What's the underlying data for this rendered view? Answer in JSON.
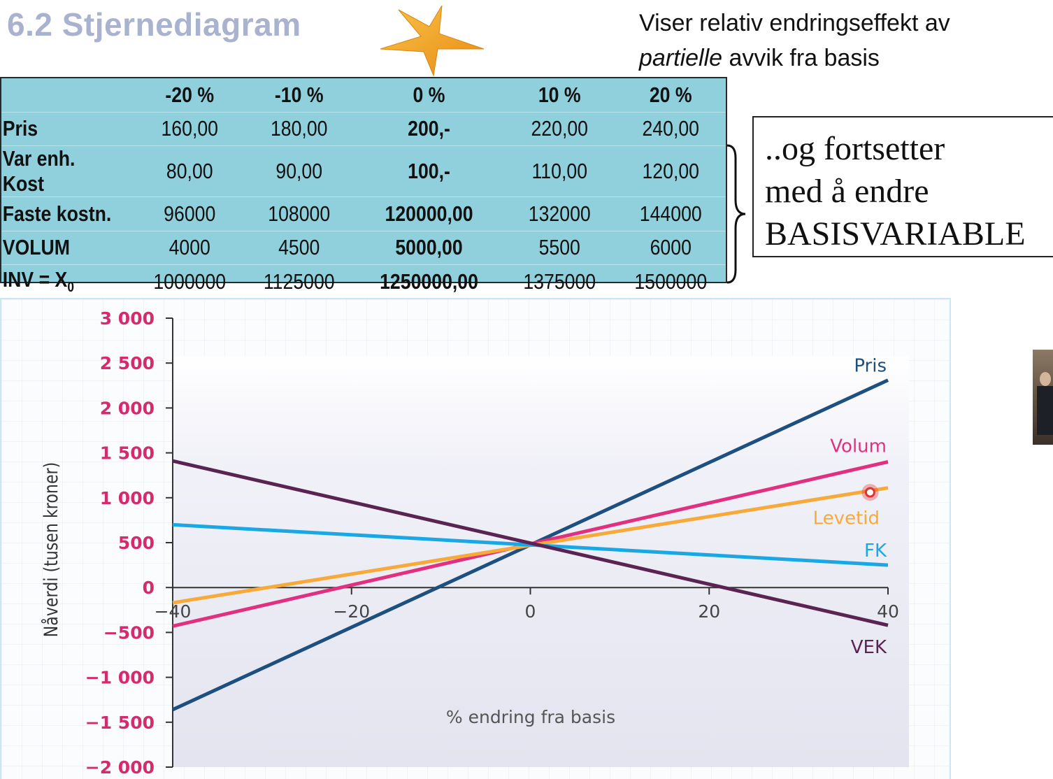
{
  "header": {
    "title": "6.2 Stjernediagram",
    "subtitle_line1": "Viser relativ endringseffekt av",
    "subtitle_italic": "partielle",
    "subtitle_rest": " avvik fra basis"
  },
  "table": {
    "columns": [
      "",
      "-20 %",
      "-10 %",
      "0 %",
      "10 %",
      "20 %"
    ],
    "rows": [
      {
        "label": "Pris",
        "values": [
          "160,00",
          "180,00",
          "200,-",
          "220,00",
          "240,00"
        ]
      },
      {
        "label": "Var enh. Kost",
        "values": [
          "80,00",
          "90,00",
          "100,-",
          "110,00",
          "120,00"
        ]
      },
      {
        "label": "Faste kostn.",
        "values": [
          "96000",
          "108000",
          "120000,00",
          "132000",
          "144000"
        ]
      },
      {
        "label": "VOLUM",
        "values": [
          "4000",
          "4500",
          "5000,00",
          "5500",
          "6000"
        ]
      },
      {
        "label": "INV =  X",
        "label_sub": "0",
        "values": [
          "1000000",
          "1125000",
          "1250000,00",
          "1375000",
          "1500000"
        ]
      }
    ]
  },
  "note": {
    "line1": "..og fortsetter",
    "line2": "med å endre",
    "line3": "BASISVARIABLE"
  },
  "chart_data": {
    "type": "line",
    "title": "",
    "xlabel": "% endring fra basis",
    "ylabel": "Nåverdi (tusen kroner)",
    "xlim": [
      -40,
      40
    ],
    "ylim": [
      -2000,
      3000
    ],
    "xticks": [
      -40,
      -20,
      0,
      20,
      40
    ],
    "xtick_labels": [
      "-40",
      "-20",
      "0",
      "20",
      "40"
    ],
    "yticks": [
      3000,
      2500,
      2000,
      1500,
      1000,
      500,
      0,
      -500,
      -1000,
      -1500,
      -2000
    ],
    "ytick_labels": [
      "3 000",
      "2 500",
      "2 000",
      "1 500",
      "1 000",
      "500",
      "0",
      "−500",
      "−1 000",
      "−1 500",
      "−2 000"
    ],
    "grid": true,
    "series": [
      {
        "name": "Pris",
        "color": "#1d4f7f",
        "x": [
          -40,
          40
        ],
        "y": [
          -1360,
          2310
        ]
      },
      {
        "name": "Volum",
        "color": "#e0307f",
        "x": [
          -40,
          40
        ],
        "y": [
          -430,
          1400
        ]
      },
      {
        "name": "Levetid",
        "color": "#f7aa3a",
        "x": [
          -40,
          40
        ],
        "y": [
          -170,
          1110
        ]
      },
      {
        "name": "FK",
        "color": "#1aa8e4",
        "x": [
          -40,
          40
        ],
        "y": [
          700,
          250
        ]
      },
      {
        "name": "VEK",
        "color": "#5a2452",
        "x": [
          -40,
          40
        ],
        "y": [
          1410,
          -420
        ]
      }
    ],
    "marker": {
      "series": "Levetid",
      "x": 38,
      "y": 1060,
      "color": "#e53030"
    }
  }
}
